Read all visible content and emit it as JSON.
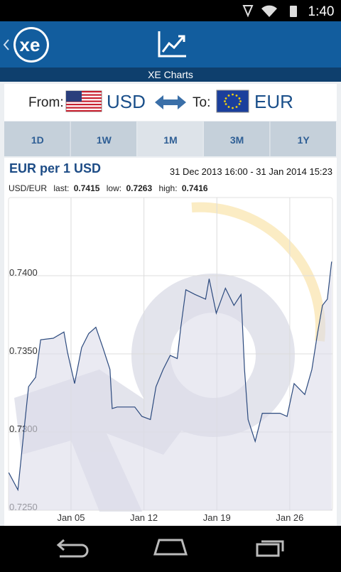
{
  "status_bar": {
    "time": "1:40"
  },
  "header": {
    "title": "XE Charts"
  },
  "currency": {
    "from_label": "From:",
    "from": "USD",
    "to_label": "To:",
    "to": "EUR"
  },
  "tabs": [
    "1D",
    "1W",
    "1M",
    "3M",
    "1Y"
  ],
  "selected_tab": 2,
  "chart_data": {
    "type": "line",
    "title": "EUR per 1 USD",
    "subtitle": "31 Dec 2013 16:00 - 31 Jan 2014 15:23",
    "stats": {
      "pair": "USD/EUR",
      "last_label": "last:",
      "last": 0.7415,
      "low_label": "low:",
      "low": 0.7263,
      "high_label": "high:",
      "high": 0.7416
    },
    "x": [
      -0.98,
      -0.1,
      0.45,
      0.92,
      1.6,
      2.08,
      3.3,
      4.32,
      4.66,
      5.34,
      6.02,
      6.7,
      7.38,
      8.06,
      8.74,
      8.95,
      9.43,
      11.12,
      11.8,
      12.62,
      13.16,
      13.84,
      14.52,
      15.2,
      15.54,
      16.02,
      16.9,
      17.92,
      18.26,
      18.94,
      19.82,
      20.64,
      21.32,
      21.66,
      22.0,
      22.68,
      23.36,
      25.06,
      25.74,
      26.42,
      27.44,
      28.12,
      28.66,
      29.14,
      29.61,
      30.02
    ],
    "values": [
      0.7274,
      0.7263,
      0.7299,
      0.7329,
      0.7335,
      0.7359,
      0.736,
      0.7364,
      0.7351,
      0.7331,
      0.7354,
      0.7363,
      0.7367,
      0.7354,
      0.734,
      0.7315,
      0.7316,
      0.7316,
      0.731,
      0.7308,
      0.7329,
      0.734,
      0.7349,
      0.7347,
      0.7367,
      0.7391,
      0.7388,
      0.7385,
      0.7398,
      0.7376,
      0.7392,
      0.7381,
      0.7388,
      0.734,
      0.7308,
      0.7294,
      0.7312,
      0.7312,
      0.731,
      0.7331,
      0.7324,
      0.734,
      0.7363,
      0.7381,
      0.7385,
      0.7409
    ],
    "color": "#2c4a7e",
    "xlim": [
      -1,
      30.1
    ],
    "ylim": [
      0.725,
      0.745
    ],
    "xticks": [
      {
        "value": 5,
        "label": "Jan 05"
      },
      {
        "value": 12,
        "label": "Jan 12"
      },
      {
        "value": 19,
        "label": "Jan 19"
      },
      {
        "value": 26,
        "label": "Jan 26"
      }
    ],
    "yticks": [
      {
        "value": 0.725,
        "label": "0.7250"
      },
      {
        "value": 0.73,
        "label": "0.7300"
      },
      {
        "value": 0.735,
        "label": "0.7350"
      },
      {
        "value": 0.74,
        "label": "0.7400"
      }
    ],
    "grid": true
  }
}
